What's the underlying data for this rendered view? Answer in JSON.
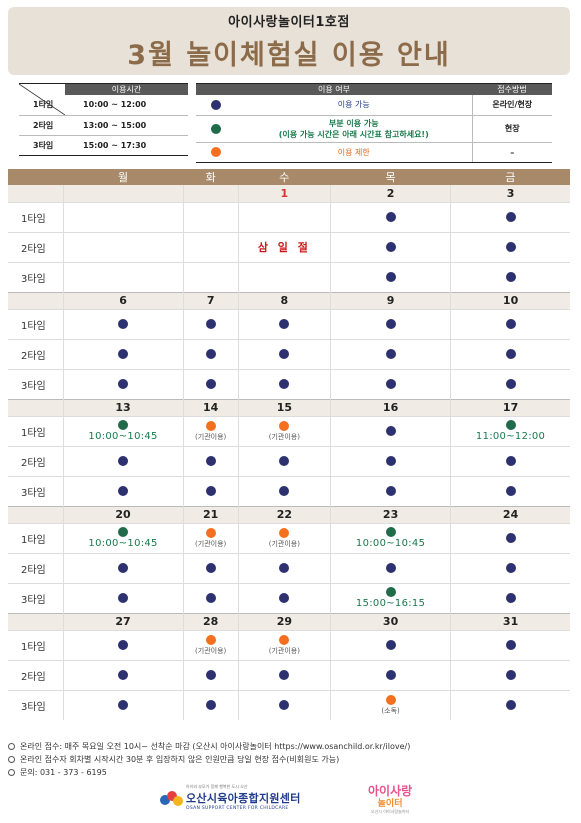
{
  "header": {
    "subtitle": "아이사랑놀이터1호점",
    "title": "3월 놀이체험실 이용 안내"
  },
  "timetable": {
    "header": "이용시간",
    "rows": [
      {
        "slot": "1타임",
        "time": "10:00 ~ 12:00"
      },
      {
        "slot": "2타임",
        "time": "13:00 ~ 15:00"
      },
      {
        "slot": "3타임",
        "time": "15:00 ~ 17:30"
      }
    ]
  },
  "legend": {
    "headers": {
      "status": "이용 여부",
      "method": "접수방법"
    },
    "rows": [
      {
        "icon": "navy-dot",
        "text": "이용 가능",
        "method": "온라인/현장"
      },
      {
        "icon": "green-dot",
        "text": "부분 이용 가능",
        "text2": "(이용 가능 시간은 아래 시간표 참고하세요!)",
        "method": "현장"
      },
      {
        "icon": "orange-dot",
        "text": "이용 제한",
        "method": "–"
      }
    ]
  },
  "colors": {
    "available": "#2e3170",
    "partial": "#1f6b4a",
    "restricted": "#f4701e",
    "header_bg": "#e8e1d7",
    "title": "#8b6b4a",
    "calendar_header": "#a88a6a"
  },
  "calendar": {
    "weekdays": [
      "월",
      "화",
      "수",
      "목",
      "금"
    ],
    "slot_labels": [
      "1타임",
      "2타임",
      "3타임"
    ],
    "holiday_label": "삼 일 절",
    "weeks": [
      {
        "dates": [
          "",
          "",
          "1",
          "2",
          "3"
        ],
        "date_colors": [
          "",
          "",
          "red",
          "",
          ""
        ],
        "slots": [
          [
            {
              "t": "none"
            },
            {
              "t": "none"
            },
            {
              "t": "holiday"
            },
            {
              "t": "navy"
            },
            {
              "t": "navy"
            }
          ],
          [
            {
              "t": "none"
            },
            {
              "t": "none"
            },
            {
              "t": "holiday-label"
            },
            {
              "t": "navy"
            },
            {
              "t": "navy"
            }
          ],
          [
            {
              "t": "none"
            },
            {
              "t": "none"
            },
            {
              "t": "holiday"
            },
            {
              "t": "navy"
            },
            {
              "t": "navy"
            }
          ]
        ]
      },
      {
        "dates": [
          "6",
          "7",
          "8",
          "9",
          "10"
        ],
        "slots": [
          [
            {
              "t": "navy"
            },
            {
              "t": "navy"
            },
            {
              "t": "navy"
            },
            {
              "t": "navy"
            },
            {
              "t": "navy"
            }
          ],
          [
            {
              "t": "navy"
            },
            {
              "t": "navy"
            },
            {
              "t": "navy"
            },
            {
              "t": "navy"
            },
            {
              "t": "navy"
            }
          ],
          [
            {
              "t": "navy"
            },
            {
              "t": "navy"
            },
            {
              "t": "navy"
            },
            {
              "t": "navy"
            },
            {
              "t": "navy"
            }
          ]
        ]
      },
      {
        "dates": [
          "13",
          "14",
          "15",
          "16",
          "17"
        ],
        "slots": [
          [
            {
              "t": "green",
              "note": "10:00~10:45"
            },
            {
              "t": "orange",
              "note": "(기관이용)"
            },
            {
              "t": "orange",
              "note": "(기관이용)"
            },
            {
              "t": "navy"
            },
            {
              "t": "green",
              "note": "11:00~12:00"
            }
          ],
          [
            {
              "t": "navy"
            },
            {
              "t": "navy"
            },
            {
              "t": "navy"
            },
            {
              "t": "navy"
            },
            {
              "t": "navy"
            }
          ],
          [
            {
              "t": "navy"
            },
            {
              "t": "navy"
            },
            {
              "t": "navy"
            },
            {
              "t": "navy"
            },
            {
              "t": "navy"
            }
          ]
        ]
      },
      {
        "dates": [
          "20",
          "21",
          "22",
          "23",
          "24"
        ],
        "slots": [
          [
            {
              "t": "green",
              "note": "10:00~10:45"
            },
            {
              "t": "orange",
              "note": "(기관이용)"
            },
            {
              "t": "orange",
              "note": "(기관이용)"
            },
            {
              "t": "green",
              "note": "10:00~10:45"
            },
            {
              "t": "navy"
            }
          ],
          [
            {
              "t": "navy"
            },
            {
              "t": "navy"
            },
            {
              "t": "navy"
            },
            {
              "t": "navy"
            },
            {
              "t": "navy"
            }
          ],
          [
            {
              "t": "navy"
            },
            {
              "t": "navy"
            },
            {
              "t": "navy"
            },
            {
              "t": "green",
              "note": "15:00~16:15"
            },
            {
              "t": "navy"
            }
          ]
        ]
      },
      {
        "dates": [
          "27",
          "28",
          "29",
          "30",
          "31"
        ],
        "slots": [
          [
            {
              "t": "navy"
            },
            {
              "t": "orange",
              "note": "(기관이용)"
            },
            {
              "t": "orange",
              "note": "(기관이용)"
            },
            {
              "t": "navy"
            },
            {
              "t": "navy"
            }
          ],
          [
            {
              "t": "navy"
            },
            {
              "t": "navy"
            },
            {
              "t": "navy"
            },
            {
              "t": "navy"
            },
            {
              "t": "navy"
            }
          ],
          [
            {
              "t": "navy"
            },
            {
              "t": "navy"
            },
            {
              "t": "navy"
            },
            {
              "t": "orange",
              "note": "(소독)"
            },
            {
              "t": "navy"
            }
          ]
        ]
      }
    ]
  },
  "footer": {
    "lines": [
      "온라인 접수: 매주 목요일 오전 10시~ 선착순 마감 (오산시 아이사랑놀이터 https://www.osanchild.or.kr/ilove/)",
      "온라인 접수자 회차별 시작시간 30분 후 입장하지 않은 인원만큼 당일 현장 접수(비회원도 가능)",
      "문의: 031 - 373 - 6195"
    ]
  },
  "logos": {
    "center_tagline": "아이와 부모가 함께 행복한 도시 오산",
    "center_name": "오산시육아종합지원센터",
    "center_eng": "OSAN SUPPORT CENTER FOR CHILDCARE",
    "play_name_1": "아이사랑",
    "play_name_2": "놀이터",
    "play_sub": "오산시 아이사랑놀이터"
  }
}
